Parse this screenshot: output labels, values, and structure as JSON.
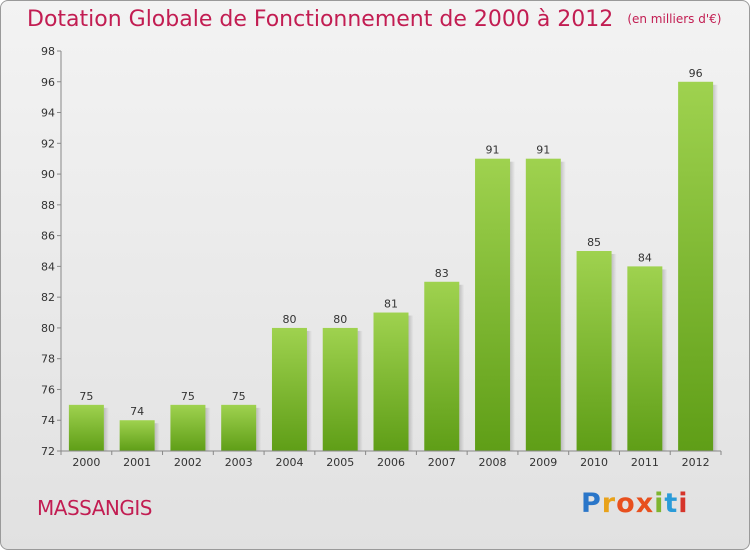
{
  "header": {
    "title": "Dotation Globale de Fonctionnement de 2000 à 2012",
    "unit": "(en milliers d'€)"
  },
  "footer": {
    "commune": "MASSANGIS",
    "brand_letters": [
      "P",
      "r",
      "o",
      "x",
      "i",
      "t",
      "i"
    ],
    "brand_colors": [
      "#2a76c9",
      "#e8a21a",
      "#e8501e",
      "#e8501e",
      "#7fb530",
      "#2a9bd8",
      "#d6342a"
    ]
  },
  "colors": {
    "accent": "#c21d52",
    "bar_top": "#9fd24f",
    "bar_bottom": "#5f9e17"
  },
  "chart_data": {
    "type": "bar",
    "title": "Dotation Globale de Fonctionnement de 2000 à 2012",
    "subtitle": "(en milliers d'€)",
    "categories": [
      "2000",
      "2001",
      "2002",
      "2003",
      "2004",
      "2005",
      "2006",
      "2007",
      "2008",
      "2009",
      "2010",
      "2011",
      "2012"
    ],
    "values": [
      75,
      74,
      75,
      75,
      80,
      80,
      81,
      83,
      91,
      91,
      85,
      84,
      96
    ],
    "data_labels": [
      "75",
      "74",
      "75",
      "75",
      "80",
      "80",
      "81",
      "83",
      "91",
      "91",
      "85",
      "84",
      "96"
    ],
    "ylim": [
      72,
      98
    ],
    "yticks": [
      72,
      74,
      76,
      78,
      80,
      82,
      84,
      86,
      88,
      90,
      92,
      94,
      96,
      98
    ],
    "grid": false,
    "legend": "none"
  }
}
